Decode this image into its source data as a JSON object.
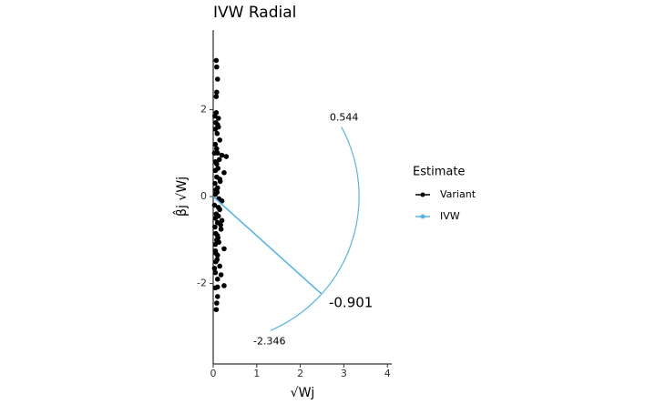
{
  "chart_data": {
    "type": "radial",
    "title": "IVW Radial",
    "x_label": "√Wj",
    "y_label": "β̂j √Wj",
    "legend_title": "Estimate",
    "legend_position": "right",
    "xlim": [
      0,
      4.1
    ],
    "xticks": [
      0,
      1,
      2,
      3,
      4
    ],
    "ylim": [
      -3.85,
      3.83
    ],
    "yticks": [
      -2,
      0,
      2
    ],
    "arc": {
      "radius": 3.35,
      "max": 0.544,
      "min": -2.346,
      "ivw": -0.901
    },
    "series": [
      {
        "name": "Variant",
        "color": "#000000",
        "x": [
          0.07,
          0.08,
          0.1,
          0.08,
          0.07,
          0.07,
          0.12,
          0.1,
          0.05,
          0.15,
          0.05,
          0.08,
          0.1,
          0.3,
          0.2,
          0.25,
          0.05,
          0.15,
          0.1,
          0.05,
          0.2,
          0.15,
          0.05,
          0.2,
          0.18,
          0.1,
          0.05,
          0.25,
          0.1,
          0.06,
          0.15,
          0.05,
          0.18,
          0.1,
          0.25,
          0.1,
          0.05,
          0.1,
          0.08,
          0.07,
          0.04,
          0.06,
          0.09,
          0.12,
          0.03,
          0.05,
          0.08,
          0.11,
          0.14,
          0.04,
          0.06,
          0.09,
          0.13,
          0.16,
          0.03,
          0.07,
          0.1,
          0.12,
          0.04,
          0.06,
          0.08,
          0.11,
          0.05,
          0.13,
          0.09,
          0.17,
          0.03,
          0.06,
          0.12,
          0.08
        ],
        "values": [
          3.13,
          2.98,
          2.7,
          2.4,
          2.3,
          1.93,
          1.8,
          1.65,
          1.55,
          1.3,
          1.2,
          1.1,
          1.0,
          0.92,
          0.95,
          0.55,
          0.6,
          0.4,
          0.2,
          0.05,
          -0.1,
          -0.3,
          -0.5,
          -0.55,
          -0.75,
          -0.9,
          -1.1,
          -1.2,
          -1.35,
          -1.5,
          -1.6,
          -1.75,
          -1.8,
          -1.9,
          -2.05,
          -2.08,
          -2.1,
          -2.3,
          -2.45,
          -2.6,
          1.85,
          1.7,
          1.45,
          1.6,
          1.0,
          0.8,
          0.75,
          0.65,
          0.85,
          0.3,
          0.15,
          0.1,
          -0.05,
          0.35,
          -0.2,
          -0.4,
          -0.6,
          -0.45,
          -0.7,
          -0.85,
          -1.0,
          -0.95,
          -1.25,
          -1.05,
          -1.45,
          -0.65,
          -1.65,
          -1.3,
          -0.25,
          0.45
        ]
      },
      {
        "name": "IVW",
        "color": "#56B4E9"
      }
    ]
  }
}
